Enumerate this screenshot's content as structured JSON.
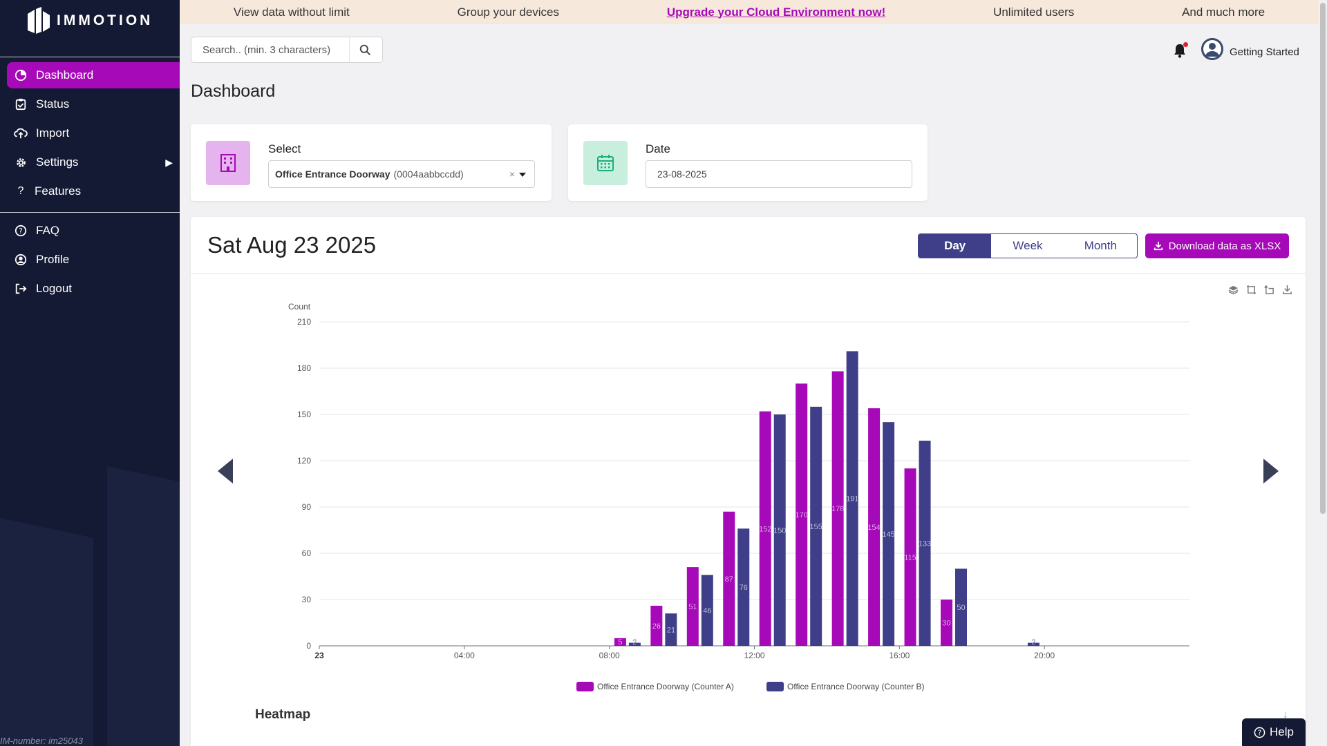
{
  "brand": {
    "name": "IMMOTION"
  },
  "sidebar": {
    "items": [
      {
        "label": "Dashboard",
        "icon": "dashboard-icon",
        "active": true
      },
      {
        "label": "Status",
        "icon": "clipboard-icon"
      },
      {
        "label": "Import",
        "icon": "cloud-upload-icon"
      },
      {
        "label": "Settings",
        "icon": "gear-icon"
      },
      {
        "label": "Features",
        "icon": "question-icon"
      }
    ],
    "bottom_items": [
      {
        "label": "FAQ",
        "icon": "question-circle-icon"
      },
      {
        "label": "Profile",
        "icon": "user-circle-icon"
      },
      {
        "label": "Logout",
        "icon": "logout-icon"
      }
    ],
    "im_number": "IM-number: im25043"
  },
  "banner": {
    "items": [
      "View data without limit",
      "Group your devices",
      "Upgrade your Cloud Environment now!",
      "Unlimited users",
      "And much more"
    ]
  },
  "search": {
    "placeholder": "Search.. (min. 3 characters)"
  },
  "user": {
    "name": "Getting Started"
  },
  "page": {
    "title": "Dashboard"
  },
  "select_card": {
    "label": "Select",
    "device_name": "Office Entrance Doorway",
    "device_id": "(0004aabbccdd)",
    "clear": "×"
  },
  "date_card": {
    "label": "Date",
    "value": "23-08-2025"
  },
  "panel": {
    "date_heading": "Sat Aug 23 2025",
    "view_tabs": [
      "Day",
      "Week",
      "Month"
    ],
    "active_tab": "Day",
    "download_label": "Download data as XLSX",
    "heatmap_title": "Heatmap"
  },
  "help": {
    "label": "Help"
  },
  "colors": {
    "accent": "#a60ab8",
    "navy": "#3f3f89",
    "sidebar": "#141a33"
  },
  "chart_data": {
    "type": "bar",
    "ylabel": "Count",
    "ylim": [
      0,
      210
    ],
    "yticks": [
      0,
      30,
      60,
      90,
      120,
      150,
      180,
      210
    ],
    "xlim": [
      0,
      24
    ],
    "xticks": [
      {
        "hour": 0,
        "label": "23",
        "bold": true
      },
      {
        "hour": 4,
        "label": "04:00"
      },
      {
        "hour": 8,
        "label": "08:00"
      },
      {
        "hour": 12,
        "label": "12:00"
      },
      {
        "hour": 16,
        "label": "16:00"
      },
      {
        "hour": 20,
        "label": "20:00"
      }
    ],
    "grid": true,
    "legend_position": "bottom",
    "hours": [
      8.5,
      9.5,
      10.5,
      11.5,
      12.5,
      13.5,
      14.5,
      15.5,
      16.5,
      17.5,
      18.5,
      19.5
    ],
    "series": [
      {
        "name": "Office Entrance Doorway (Counter A)",
        "color": "#a60ab8",
        "values": [
          5,
          26,
          51,
          87,
          152,
          170,
          178,
          154,
          115,
          30,
          null,
          null
        ]
      },
      {
        "name": "Office Entrance Doorway (Counter B)",
        "color": "#3f3f89",
        "values": [
          2,
          21,
          46,
          76,
          150,
          155,
          191,
          145,
          133,
          50,
          null,
          2
        ]
      }
    ]
  }
}
